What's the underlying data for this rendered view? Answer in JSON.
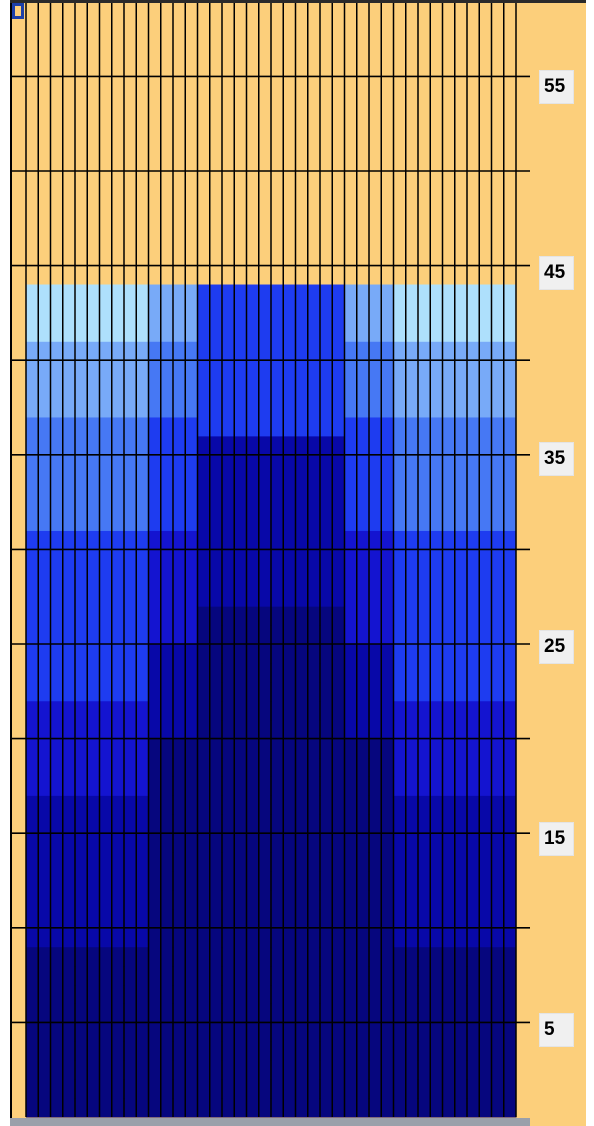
{
  "colors": {
    "background": "#fccf7b",
    "grid": "#000000",
    "levels": {
      "1": "#06067e",
      "2": "#0808a8",
      "3": "#1414d0",
      "4": "#1e3cf0",
      "5": "#4678f4",
      "6": "#78aaf8",
      "7": "#aee0fc",
      "8": "#c8faff"
    }
  },
  "axis": {
    "ticks": [
      "55",
      "45",
      "35",
      "25",
      "15",
      "5"
    ]
  },
  "grid_data": {
    "columns": 40,
    "rows": 59,
    "column_profile": [
      [
        0,
        0,
        0,
        0,
        0,
        0,
        0,
        0,
        0,
        0,
        0,
        0,
        0,
        0,
        0,
        0,
        0,
        0,
        0,
        0,
        0,
        0,
        0,
        0,
        0,
        0,
        0,
        0,
        0,
        0,
        0,
        0,
        0,
        0,
        0,
        0,
        0,
        0,
        0,
        0
      ],
      [
        1,
        1,
        1,
        1,
        1,
        1,
        1,
        1,
        1,
        1,
        1,
        1,
        1,
        1,
        1,
        1,
        1,
        1,
        1,
        1,
        1,
        1,
        1,
        1,
        1,
        1,
        1,
        1,
        1,
        1,
        1,
        1,
        1,
        1,
        1,
        1,
        1,
        1,
        1,
        1
      ]
    ]
  }
}
